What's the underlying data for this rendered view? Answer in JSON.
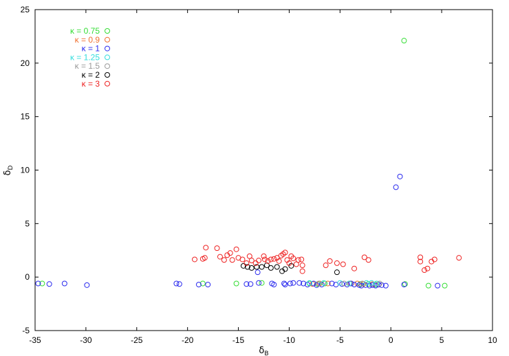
{
  "chart_data": {
    "type": "scatter",
    "title": "",
    "xlabel": "δ",
    "xlabel_sub": "B",
    "ylabel": "δ",
    "ylabel_sub": "D",
    "xlim": [
      -35,
      10
    ],
    "ylim": [
      -5,
      25
    ],
    "x_ticks": [
      -35,
      -30,
      -25,
      -20,
      -15,
      -10,
      -5,
      0,
      5,
      10
    ],
    "y_ticks": [
      -5,
      0,
      5,
      10,
      15,
      20,
      25
    ],
    "grid": false,
    "legend_position": "top-left",
    "series": [
      {
        "name": "κ = 0.75",
        "color": "#33dd33",
        "points": [
          [
            1.3,
            22.1
          ],
          [
            -34.3,
            -0.6
          ],
          [
            -18.5,
            -0.6
          ],
          [
            -15.2,
            -0.6
          ],
          [
            -12.7,
            -0.55
          ],
          [
            -8.0,
            -0.6
          ],
          [
            -7.2,
            -0.65
          ],
          [
            -6.5,
            -0.6
          ],
          [
            -3.0,
            -0.65
          ],
          [
            -2.2,
            -0.65
          ],
          [
            -1.5,
            -0.7
          ],
          [
            1.4,
            -0.65
          ],
          [
            3.7,
            -0.8
          ],
          [
            5.3,
            -0.8
          ]
        ]
      },
      {
        "name": "κ = 0.9",
        "color": "#f07030",
        "points": [
          [
            -7.7,
            -0.65
          ],
          [
            -7.0,
            -0.6
          ],
          [
            -6.2,
            -0.6
          ],
          [
            -4.0,
            -0.6
          ],
          [
            -3.3,
            -0.6
          ],
          [
            -2.7,
            -0.65
          ],
          [
            -1.8,
            -0.65
          ],
          [
            -1.2,
            -0.7
          ]
        ]
      },
      {
        "name": "κ = 1",
        "color": "#2a2aee",
        "points": [
          [
            0.5,
            8.4
          ],
          [
            0.9,
            9.4
          ],
          [
            -34.7,
            -0.6
          ],
          [
            -33.6,
            -0.65
          ],
          [
            -32.1,
            -0.6
          ],
          [
            -29.9,
            -0.75
          ],
          [
            -21.1,
            -0.6
          ],
          [
            -20.8,
            -0.65
          ],
          [
            -18.9,
            -0.7
          ],
          [
            -18.0,
            -0.7
          ],
          [
            -14.2,
            -0.65
          ],
          [
            -13.8,
            -0.65
          ],
          [
            -13.0,
            -0.55
          ],
          [
            -11.7,
            -0.6
          ],
          [
            -11.5,
            -0.7
          ],
          [
            -10.5,
            -0.6
          ],
          [
            -10.4,
            -0.7
          ],
          [
            -9.9,
            -0.6
          ],
          [
            -9.6,
            -0.55
          ],
          [
            -9.0,
            -0.55
          ],
          [
            -8.6,
            -0.6
          ],
          [
            -8.2,
            -0.7
          ],
          [
            -7.6,
            -0.6
          ],
          [
            -7.3,
            -0.75
          ],
          [
            -6.8,
            -0.7
          ],
          [
            -5.8,
            -0.6
          ],
          [
            -5.4,
            -0.7
          ],
          [
            -4.8,
            -0.65
          ],
          [
            -4.3,
            -0.7
          ],
          [
            -3.9,
            -0.6
          ],
          [
            -3.6,
            -0.7
          ],
          [
            -3.1,
            -0.75
          ],
          [
            -2.9,
            -0.8
          ],
          [
            -2.5,
            -0.75
          ],
          [
            -2.1,
            -0.8
          ],
          [
            -1.8,
            -0.75
          ],
          [
            -1.5,
            -0.8
          ],
          [
            -1.2,
            -0.7
          ],
          [
            -0.9,
            -0.75
          ],
          [
            -0.5,
            -0.8
          ],
          [
            -13.1,
            0.45
          ],
          [
            1.3,
            -0.7
          ],
          [
            4.6,
            -0.8
          ]
        ]
      },
      {
        "name": "κ = 1.25",
        "color": "#33dddd",
        "points": [
          [
            -8.0,
            -0.55
          ],
          [
            -6.6,
            -0.55
          ],
          [
            -5.0,
            -0.55
          ],
          [
            -4.1,
            -0.6
          ],
          [
            -2.4,
            -0.55
          ],
          [
            -1.9,
            -0.55
          ],
          [
            -1.4,
            -0.6
          ]
        ]
      },
      {
        "name": "κ = 1.5",
        "color": "#999999",
        "points": [
          [
            -7.1,
            -0.6
          ],
          [
            -4.6,
            -0.6
          ],
          [
            -2.8,
            -0.6
          ],
          [
            -1.1,
            -0.6
          ]
        ]
      },
      {
        "name": "κ = 2",
        "color": "#000000",
        "points": [
          [
            -14.5,
            1.05
          ],
          [
            -14.1,
            0.95
          ],
          [
            -13.7,
            0.85
          ],
          [
            -13.2,
            0.95
          ],
          [
            -12.7,
            0.95
          ],
          [
            -12.2,
            1.1
          ],
          [
            -11.8,
            0.85
          ],
          [
            -11.2,
            0.95
          ],
          [
            -10.7,
            0.55
          ],
          [
            -10.4,
            0.75
          ],
          [
            -9.8,
            1.05
          ],
          [
            -5.3,
            0.45
          ]
        ]
      },
      {
        "name": "κ = 3",
        "color": "#ee2222",
        "points": [
          [
            -19.3,
            1.65
          ],
          [
            -18.5,
            1.7
          ],
          [
            -18.3,
            1.8
          ],
          [
            -18.2,
            2.75
          ],
          [
            -17.1,
            2.7
          ],
          [
            -16.8,
            1.9
          ],
          [
            -16.4,
            1.6
          ],
          [
            -16.1,
            2.05
          ],
          [
            -15.8,
            2.25
          ],
          [
            -15.6,
            1.6
          ],
          [
            -15.2,
            2.6
          ],
          [
            -15.0,
            1.8
          ],
          [
            -14.6,
            1.65
          ],
          [
            -14.2,
            1.3
          ],
          [
            -13.9,
            1.95
          ],
          [
            -13.7,
            1.55
          ],
          [
            -13.3,
            1.3
          ],
          [
            -13.0,
            1.55
          ],
          [
            -12.5,
            1.95
          ],
          [
            -12.4,
            1.65
          ],
          [
            -12.1,
            1.5
          ],
          [
            -11.8,
            1.65
          ],
          [
            -11.5,
            1.7
          ],
          [
            -11.2,
            1.8
          ],
          [
            -11.0,
            1.5
          ],
          [
            -10.8,
            2.0
          ],
          [
            -10.6,
            2.15
          ],
          [
            -10.4,
            2.3
          ],
          [
            -10.2,
            1.6
          ],
          [
            -10.0,
            1.3
          ],
          [
            -9.8,
            1.95
          ],
          [
            -9.6,
            1.75
          ],
          [
            -9.3,
            1.2
          ],
          [
            -9.1,
            1.6
          ],
          [
            -8.8,
            1.65
          ],
          [
            -8.7,
            1.1
          ],
          [
            -8.7,
            0.55
          ],
          [
            -6.4,
            1.1
          ],
          [
            -6.0,
            1.5
          ],
          [
            -5.3,
            1.3
          ],
          [
            -4.7,
            1.2
          ],
          [
            -3.6,
            0.8
          ],
          [
            -2.6,
            1.85
          ],
          [
            -2.2,
            1.6
          ],
          [
            2.9,
            1.85
          ],
          [
            2.9,
            1.45
          ],
          [
            3.3,
            0.65
          ],
          [
            3.6,
            0.8
          ],
          [
            4.0,
            1.45
          ],
          [
            4.3,
            1.65
          ],
          [
            6.7,
            1.8
          ]
        ]
      }
    ]
  }
}
